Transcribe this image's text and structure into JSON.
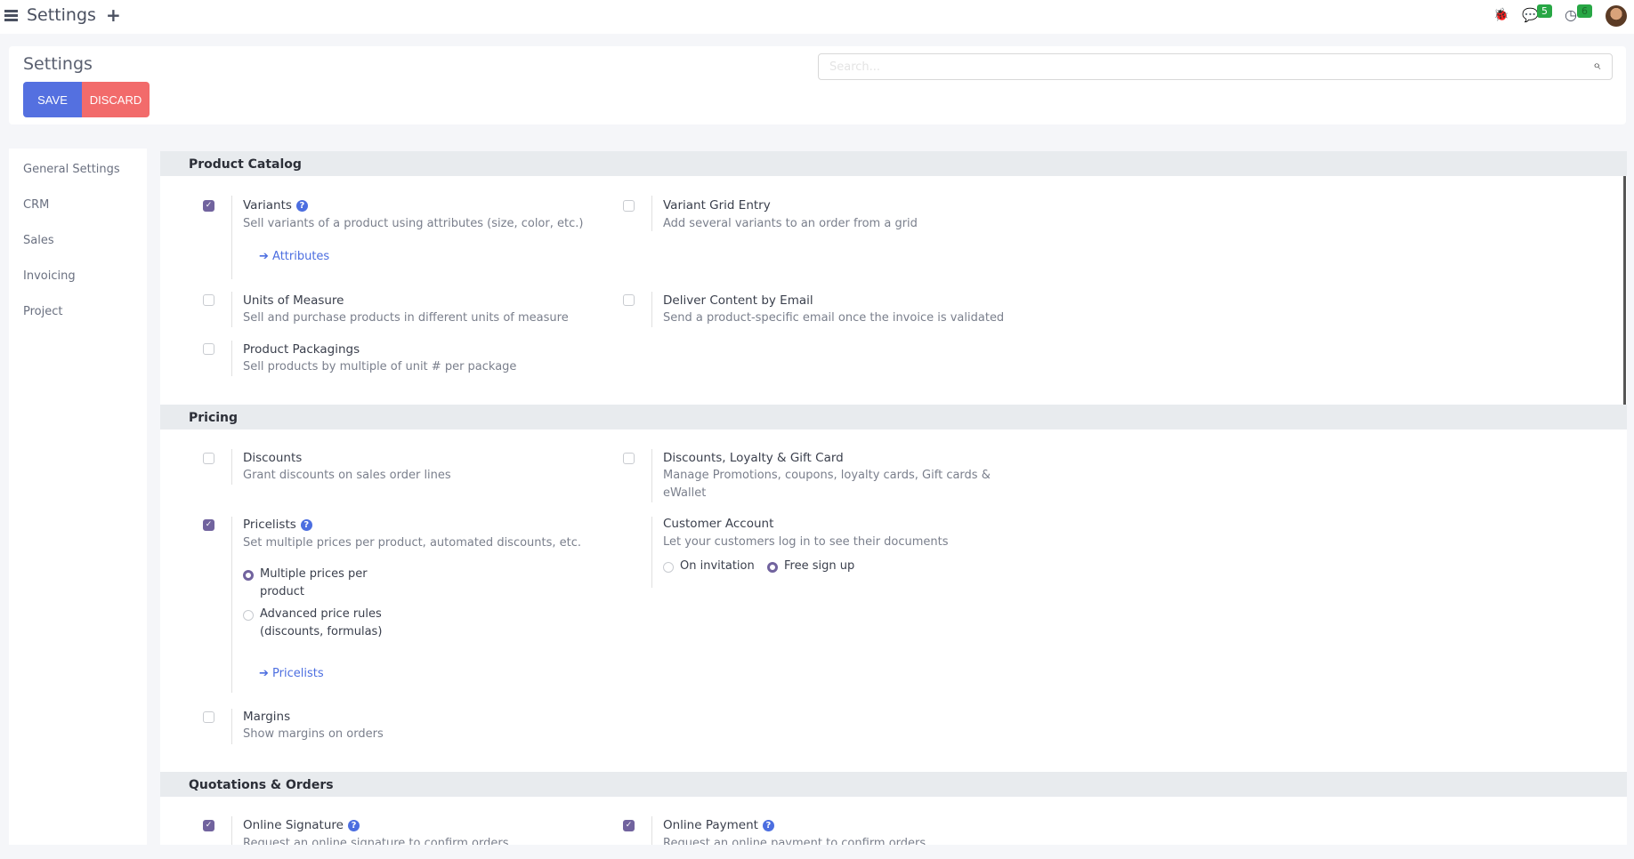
{
  "topbar": {
    "title": "Settings",
    "messages_count": "5",
    "activities_count": "6"
  },
  "control_panel": {
    "title": "Settings",
    "save_label": "SAVE",
    "discard_label": "DISCARD",
    "search_placeholder": "Search..."
  },
  "sidebar": {
    "items": [
      {
        "label": "General Settings"
      },
      {
        "label": "CRM"
      },
      {
        "label": "Sales"
      },
      {
        "label": "Invoicing"
      },
      {
        "label": "Project"
      }
    ]
  },
  "sections": {
    "catalog": {
      "title": "Product Catalog",
      "variants": {
        "title": "Variants",
        "desc": "Sell variants of a product using attributes (size, color, etc.)",
        "link": "Attributes",
        "checked": true
      },
      "grid": {
        "title": "Variant Grid Entry",
        "desc": "Add several variants to an order from a grid",
        "checked": false
      },
      "uom": {
        "title": "Units of Measure",
        "desc": "Sell and purchase products in different units of measure",
        "checked": false
      },
      "email": {
        "title": "Deliver Content by Email",
        "desc": "Send a product-specific email once the invoice is validated",
        "checked": false
      },
      "pack": {
        "title": "Product Packagings",
        "desc": "Sell products by multiple of unit # per package",
        "checked": false
      }
    },
    "pricing": {
      "title": "Pricing",
      "discounts": {
        "title": "Discounts",
        "desc": "Grant discounts on sales order lines",
        "checked": false
      },
      "loyalty": {
        "title": "Discounts, Loyalty & Gift Card",
        "desc": "Manage Promotions, coupons, loyalty cards, Gift cards & eWallet",
        "checked": false
      },
      "pricelists": {
        "title": "Pricelists",
        "desc": "Set multiple prices per product, automated discounts, etc.",
        "checked": true,
        "opt1": "Multiple prices per product",
        "opt2": "Advanced price rules (discounts, formulas)",
        "selected": "Multiple prices per product",
        "link": "Pricelists"
      },
      "account": {
        "title": "Customer Account",
        "desc": "Let your customers log in to see their documents",
        "opt1": "On invitation",
        "opt2": "Free sign up",
        "selected": "Free sign up"
      },
      "margins": {
        "title": "Margins",
        "desc": "Show margins on orders",
        "checked": false
      }
    },
    "orders": {
      "title": "Quotations & Orders",
      "signature": {
        "title": "Online Signature",
        "desc": "Request an online signature to confirm orders",
        "checked": true
      },
      "payment": {
        "title": "Online Payment",
        "desc": "Request an online payment to confirm orders",
        "checked": true
      }
    }
  },
  "colors": {
    "accent": "#71639e",
    "save": "#5470e0",
    "discard": "#f26b6b",
    "link": "#4c6ee0",
    "badge": "#28a745"
  }
}
